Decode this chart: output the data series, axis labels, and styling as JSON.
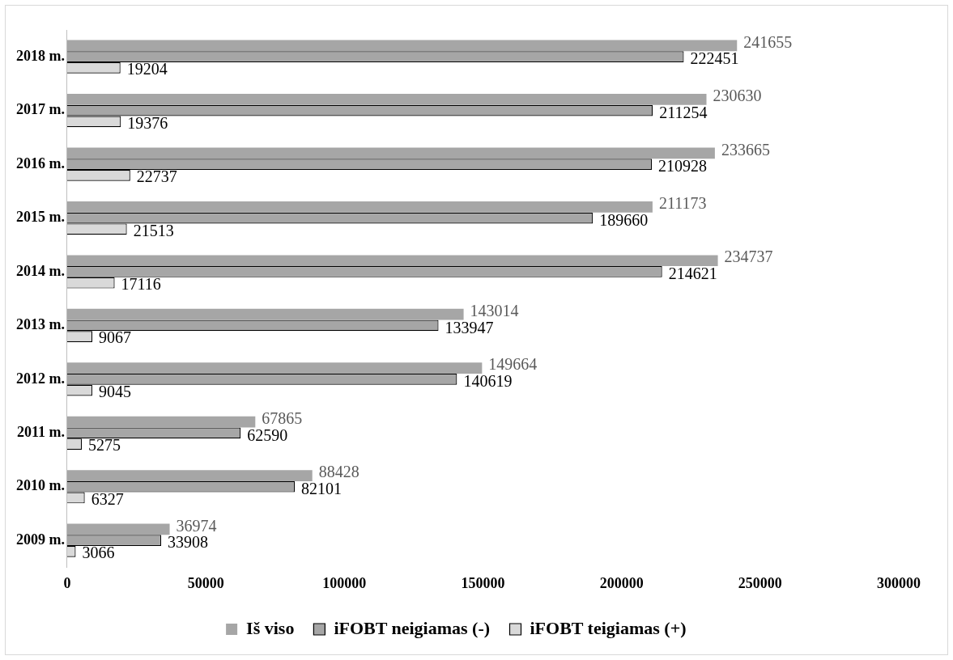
{
  "chart_data": {
    "type": "bar",
    "orientation": "horizontal",
    "categories": [
      "2018 m.",
      "2017 m.",
      "2016 m.",
      "2015 m.",
      "2014 m.",
      "2013 m.",
      "2012 m.",
      "2011 m.",
      "2010 m.",
      "2009 m."
    ],
    "series": [
      {
        "name": "Iš viso",
        "color": "#a6a6a6",
        "values": [
          241655,
          230630,
          233665,
          211173,
          234737,
          143014,
          149664,
          67865,
          88428,
          36974
        ]
      },
      {
        "name": "iFOBT neigiamas (-)",
        "color": "#a6a6a6",
        "values": [
          222451,
          211254,
          210928,
          189660,
          214621,
          133947,
          140619,
          62590,
          82101,
          33908
        ]
      },
      {
        "name": "iFOBT teigiamas (+)",
        "color": "#d9d9d9",
        "values": [
          19204,
          19376,
          22737,
          21513,
          17116,
          9067,
          9045,
          5275,
          6327,
          3066
        ]
      }
    ],
    "xlim": [
      0,
      300000
    ],
    "xticks": [
      0,
      50000,
      100000,
      150000,
      200000,
      250000,
      300000
    ],
    "grid": false,
    "legend": "bottom",
    "data_labels": true
  }
}
